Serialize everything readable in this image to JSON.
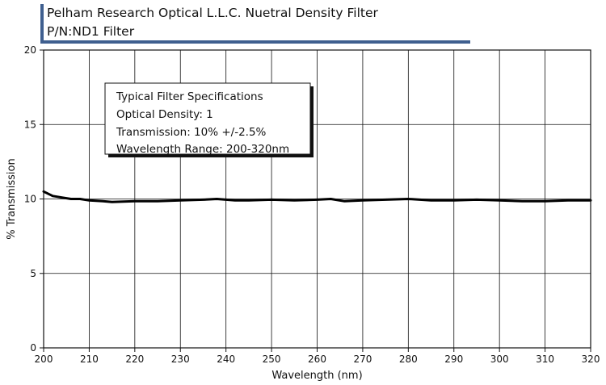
{
  "header": {
    "title": "Pelham Research Optical L.L.C. Nuetral Density Filter",
    "subtitle": "P/N:ND1 Filter"
  },
  "spec_box": {
    "lines": [
      "Typical Filter Specifications",
      "Optical Density: 1",
      "Transmission: 10% +/-2.5%",
      "Wavelength Range: 200-320nm"
    ]
  },
  "chart_data": {
    "type": "line",
    "xlabel": "Wavelength (nm)",
    "ylabel": "% Transmission",
    "xlim": [
      200,
      320
    ],
    "ylim": [
      0,
      20
    ],
    "xticks": [
      200,
      210,
      220,
      230,
      240,
      250,
      260,
      270,
      280,
      290,
      300,
      310,
      320
    ],
    "yticks": [
      0,
      5,
      10,
      15,
      20
    ],
    "grid": true,
    "series": [
      {
        "color": "#000000",
        "x": [
          200,
          202,
          204,
          206,
          208,
          210,
          213,
          215,
          220,
          225,
          230,
          235,
          238,
          242,
          245,
          250,
          255,
          260,
          263,
          266,
          270,
          275,
          280,
          285,
          290,
          295,
          300,
          305,
          310,
          315,
          320
        ],
        "y": [
          10.5,
          10.2,
          10.1,
          10.0,
          10.0,
          9.9,
          9.85,
          9.8,
          9.85,
          9.85,
          9.9,
          9.95,
          10.0,
          9.9,
          9.9,
          9.95,
          9.9,
          9.95,
          10.0,
          9.85,
          9.9,
          9.95,
          10.0,
          9.9,
          9.9,
          9.95,
          9.9,
          9.85,
          9.85,
          9.9,
          9.9
        ]
      }
    ]
  }
}
